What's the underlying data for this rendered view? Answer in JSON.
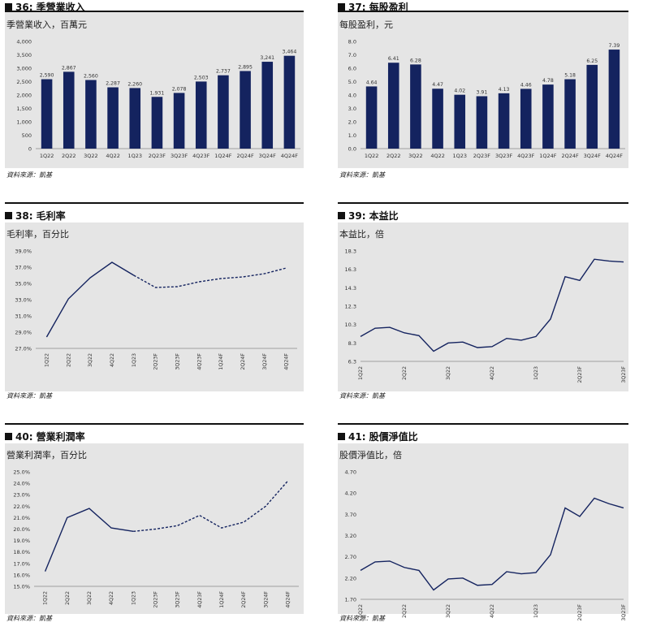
{
  "charts": [
    {
      "title": "36: 季營業收入",
      "subtitle": "季營業收入，百萬元",
      "source": "資料來源：凱基",
      "chart_data": {
        "type": "bar",
        "categories": [
          "1Q22",
          "2Q22",
          "3Q22",
          "4Q22",
          "1Q23",
          "2Q23F",
          "3Q23F",
          "4Q23F",
          "1Q24F",
          "2Q24F",
          "3Q24F",
          "4Q24F"
        ],
        "values": [
          2590,
          2867,
          2560,
          2287,
          2260,
          1931,
          2078,
          2503,
          2737,
          2895,
          3241,
          3464
        ],
        "data_labels": [
          "2,590",
          "2,867",
          "2,560",
          "2,287",
          "2,260",
          "1,931",
          "2,078",
          "2,503",
          "2,737",
          "2,895",
          "3,241",
          "3,464"
        ],
        "yticks": [
          "0",
          "500",
          "1,000",
          "1,500",
          "2,000",
          "2,500",
          "3,000",
          "3,500",
          "4,000"
        ],
        "ylim": [
          0,
          4000
        ]
      }
    },
    {
      "title": "37: 每股盈利",
      "subtitle": "每股盈利，元",
      "source": "資料來源：凱基",
      "chart_data": {
        "type": "bar",
        "categories": [
          "1Q22",
          "2Q22",
          "3Q22",
          "4Q22",
          "1Q23",
          "2Q23F",
          "3Q23F",
          "4Q23F",
          "1Q24F",
          "2Q24F",
          "3Q24F",
          "4Q24F"
        ],
        "values": [
          4.64,
          6.41,
          6.28,
          4.47,
          4.02,
          3.91,
          4.13,
          4.46,
          4.78,
          5.18,
          6.25,
          7.39
        ],
        "data_labels": [
          "4.64",
          "6.41",
          "6.28",
          "4.47",
          "4.02",
          "3.91",
          "4.13",
          "4.46",
          "4.78",
          "5.18",
          "6.25",
          "7.39"
        ],
        "yticks": [
          "0.0",
          "1.0",
          "2.0",
          "3.0",
          "4.0",
          "5.0",
          "6.0",
          "7.0",
          "8.0"
        ],
        "ylim": [
          0,
          8
        ]
      }
    },
    {
      "title": "38: 毛利率",
      "subtitle": "毛利率，百分比",
      "source": "資料來源：凱基",
      "chart_data": {
        "type": "line",
        "categories": [
          "1Q22",
          "2Q22",
          "3Q22",
          "4Q22",
          "1Q23",
          "2Q23F",
          "3Q23F",
          "4Q23F",
          "1Q24F",
          "2Q24F",
          "3Q24F",
          "4Q24F"
        ],
        "values": [
          28.4,
          33.1,
          35.7,
          37.6,
          36.0,
          34.5,
          34.6,
          35.2,
          35.6,
          35.8,
          36.2,
          36.9
        ],
        "solid_until_index": 4,
        "yticks": [
          "27.0%",
          "29.0%",
          "31.0%",
          "33.0%",
          "35.0%",
          "37.0%",
          "39.0%"
        ],
        "ylim": [
          27,
          39
        ]
      }
    },
    {
      "title": "39: 本益比",
      "subtitle": "本益比，倍",
      "source": "資料來源：凱基",
      "chart_data": {
        "type": "line",
        "x_tick_labels": [
          "1Q22",
          "2Q22",
          "3Q22",
          "4Q22",
          "1Q23",
          "2Q23F",
          "3Q23F"
        ],
        "values": [
          9.0,
          9.9,
          10.0,
          9.4,
          9.1,
          7.4,
          8.3,
          8.4,
          7.8,
          7.9,
          8.8,
          8.6,
          9.0,
          10.9,
          15.5,
          15.1,
          17.4,
          17.2,
          17.1
        ],
        "yticks": [
          "6.3",
          "8.3",
          "10.3",
          "12.3",
          "14.3",
          "16.3",
          "18.3"
        ],
        "ylim": [
          6.3,
          18.3
        ]
      }
    },
    {
      "title": "40: 營業利潤率",
      "subtitle": "營業利潤率，百分比",
      "source": "資料來源：凱基",
      "chart_data": {
        "type": "line",
        "categories": [
          "1Q22",
          "2Q22",
          "3Q22",
          "4Q22",
          "1Q23",
          "2Q23F",
          "3Q23F",
          "4Q23F",
          "1Q24F",
          "2Q24F",
          "3Q24F",
          "4Q24F"
        ],
        "values": [
          16.3,
          21.0,
          21.8,
          20.1,
          19.8,
          20.0,
          20.3,
          21.2,
          20.1,
          20.6,
          22.0,
          24.2
        ],
        "solid_until_index": 4,
        "yticks": [
          "15.0%",
          "16.0%",
          "17.0%",
          "18.0%",
          "19.0%",
          "20.0%",
          "21.0%",
          "22.0%",
          "23.0%",
          "24.0%",
          "25.0%"
        ],
        "ylim": [
          15,
          25
        ]
      }
    },
    {
      "title": "41: 股價淨值比",
      "subtitle": "股價淨值比，倍",
      "source": "資料來源：凱基",
      "chart_data": {
        "type": "line",
        "x_tick_labels": [
          "1Q22",
          "2Q22",
          "3Q22",
          "4Q22",
          "1Q23",
          "2Q23F",
          "3Q23F"
        ],
        "values": [
          2.38,
          2.58,
          2.6,
          2.45,
          2.38,
          1.92,
          2.18,
          2.2,
          2.03,
          2.05,
          2.35,
          2.3,
          2.33,
          2.75,
          3.85,
          3.65,
          4.08,
          3.95,
          3.85
        ],
        "yticks": [
          "1.70",
          "2.20",
          "2.70",
          "3.20",
          "3.70",
          "4.20",
          "4.70"
        ],
        "ylim": [
          1.7,
          4.7
        ]
      }
    }
  ]
}
